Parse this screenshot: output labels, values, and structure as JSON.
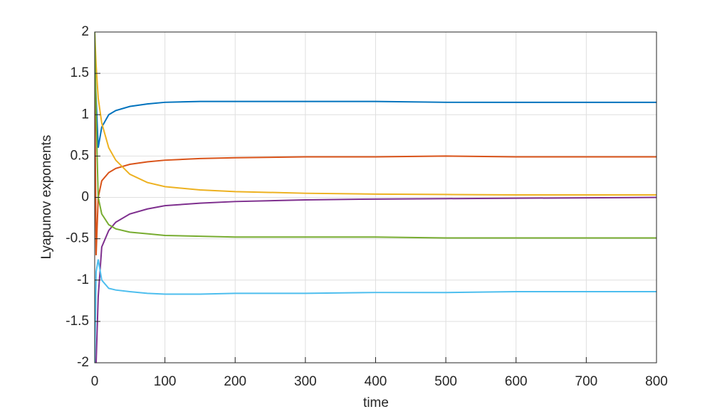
{
  "chart_data": {
    "type": "line",
    "xlabel": "time",
    "ylabel": "Lyapunov exponents",
    "x": [
      0,
      2,
      5,
      10,
      20,
      30,
      50,
      75,
      100,
      150,
      200,
      300,
      400,
      500,
      600,
      700,
      800
    ],
    "series": [
      {
        "color": "#0072bd",
        "values": [
          1.6,
          1.2,
          0.6,
          0.85,
          1.0,
          1.05,
          1.1,
          1.13,
          1.15,
          1.16,
          1.16,
          1.16,
          1.16,
          1.15,
          1.15,
          1.15,
          1.15
        ]
      },
      {
        "color": "#d95319",
        "values": [
          1.4,
          -0.7,
          0.0,
          0.2,
          0.3,
          0.35,
          0.4,
          0.43,
          0.45,
          0.47,
          0.48,
          0.49,
          0.49,
          0.5,
          0.49,
          0.49,
          0.49
        ]
      },
      {
        "color": "#edb120",
        "values": [
          2,
          1.6,
          1.2,
          0.9,
          0.6,
          0.45,
          0.28,
          0.18,
          0.13,
          0.09,
          0.07,
          0.05,
          0.04,
          0.035,
          0.03,
          0.03,
          0.03
        ]
      },
      {
        "color": "#7e2f8e",
        "values": [
          -2,
          -2,
          -1.2,
          -0.6,
          -0.4,
          -0.3,
          -0.2,
          -0.14,
          -0.1,
          -0.07,
          -0.05,
          -0.03,
          -0.02,
          -0.015,
          -0.01,
          -0.005,
          0
        ]
      },
      {
        "color": "#77ac30",
        "values": [
          2,
          1.0,
          0.0,
          -0.2,
          -0.33,
          -0.38,
          -0.42,
          -0.44,
          -0.46,
          -0.47,
          -0.48,
          -0.48,
          -0.48,
          -0.49,
          -0.49,
          -0.49,
          -0.49
        ]
      },
      {
        "color": "#4dbeee",
        "values": [
          -2,
          -0.9,
          -0.75,
          -1.0,
          -1.1,
          -1.12,
          -1.14,
          -1.16,
          -1.17,
          -1.17,
          -1.16,
          -1.16,
          -1.15,
          -1.15,
          -1.14,
          -1.14,
          -1.14
        ]
      }
    ],
    "xlim": [
      0,
      800
    ],
    "xticks": [
      0,
      100,
      200,
      300,
      400,
      500,
      600,
      700,
      800
    ],
    "ylim": [
      -2,
      2
    ],
    "yticks": [
      -2,
      -1.5,
      -1,
      -0.5,
      0,
      0.5,
      1,
      1.5,
      2
    ],
    "grid": true
  }
}
